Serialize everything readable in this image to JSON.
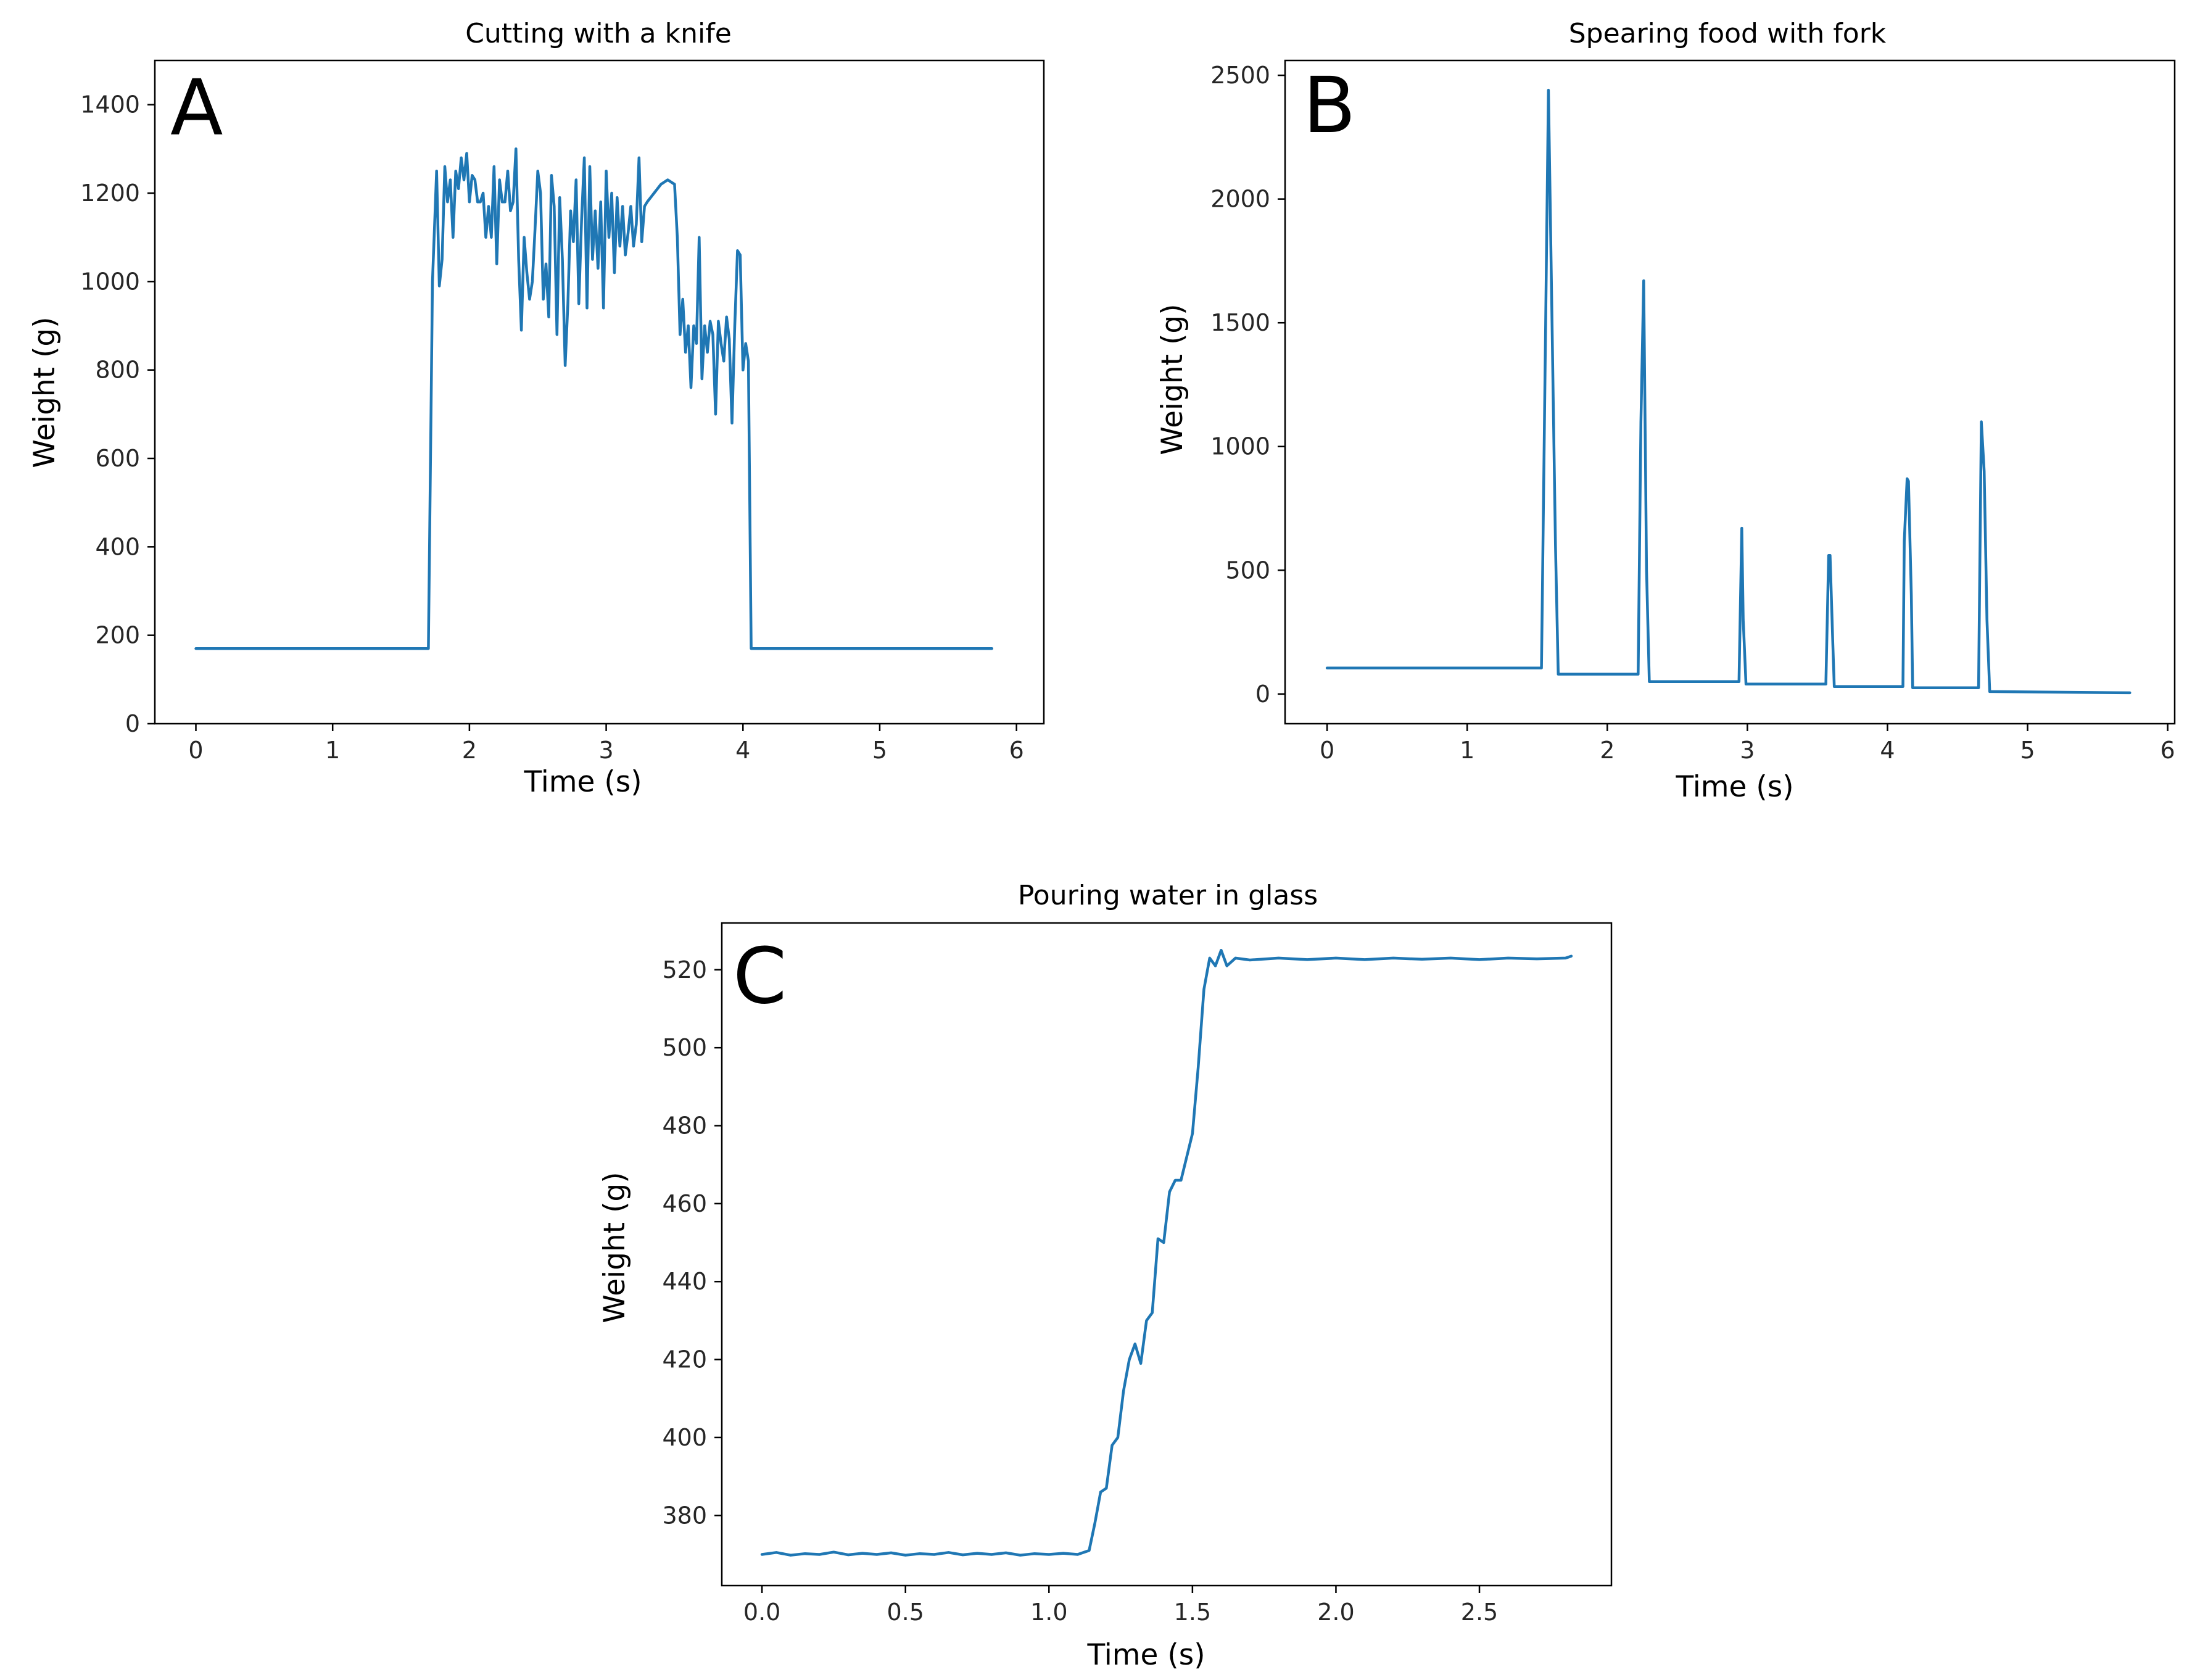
{
  "colors": {
    "series": "#1f77b4",
    "axes": "#000000",
    "background": "#ffffff"
  },
  "chart_data": [
    {
      "type": "line",
      "panel_label": "A",
      "title": "Cutting with a knife",
      "xlabel": "Time (s)",
      "ylabel": "Weight (g)",
      "xlim": [
        -0.3,
        6.2
      ],
      "ylim": [
        0,
        1500
      ],
      "xticks": [
        0,
        1,
        2,
        3,
        4,
        5,
        6
      ],
      "xtick_labels": [
        "0",
        "1",
        "2",
        "3",
        "4",
        "5",
        "6"
      ],
      "yticks": [
        0,
        200,
        400,
        600,
        800,
        1000,
        1200,
        1400
      ],
      "ytick_labels": [
        "0",
        "200",
        "400",
        "600",
        "800",
        "1000",
        "1200",
        "1400"
      ],
      "series": [
        {
          "name": "weight",
          "x": [
            0,
            1.7,
            1.73,
            1.76,
            1.78,
            1.8,
            1.82,
            1.84,
            1.86,
            1.88,
            1.9,
            1.92,
            1.94,
            1.96,
            1.98,
            2.0,
            2.02,
            2.04,
            2.06,
            2.08,
            2.1,
            2.12,
            2.14,
            2.16,
            2.18,
            2.2,
            2.22,
            2.24,
            2.26,
            2.28,
            2.3,
            2.32,
            2.34,
            2.36,
            2.38,
            2.4,
            2.42,
            2.44,
            2.46,
            2.48,
            2.5,
            2.52,
            2.54,
            2.56,
            2.58,
            2.6,
            2.62,
            2.64,
            2.66,
            2.68,
            2.7,
            2.72,
            2.74,
            2.76,
            2.78,
            2.8,
            2.82,
            2.84,
            2.86,
            2.88,
            2.9,
            2.92,
            2.94,
            2.96,
            2.98,
            3.0,
            3.02,
            3.04,
            3.06,
            3.08,
            3.1,
            3.12,
            3.14,
            3.16,
            3.18,
            3.2,
            3.22,
            3.24,
            3.26,
            3.28,
            3.3,
            3.35,
            3.4,
            3.45,
            3.5,
            3.52,
            3.54,
            3.56,
            3.58,
            3.6,
            3.62,
            3.64,
            3.66,
            3.68,
            3.7,
            3.72,
            3.74,
            3.76,
            3.78,
            3.8,
            3.82,
            3.84,
            3.86,
            3.88,
            3.9,
            3.92,
            3.94,
            3.96,
            3.98,
            4.0,
            4.02,
            4.04,
            4.06,
            4.08,
            5.82
          ],
          "y": [
            170,
            170,
            1000,
            1250,
            990,
            1050,
            1260,
            1180,
            1230,
            1100,
            1250,
            1210,
            1280,
            1230,
            1290,
            1180,
            1240,
            1230,
            1180,
            1180,
            1200,
            1100,
            1170,
            1100,
            1260,
            1040,
            1230,
            1180,
            1180,
            1250,
            1160,
            1180,
            1300,
            1050,
            890,
            1100,
            1020,
            960,
            1000,
            1120,
            1250,
            1200,
            960,
            1040,
            920,
            1240,
            1170,
            880,
            1190,
            1050,
            810,
            950,
            1160,
            1090,
            1230,
            950,
            1140,
            1280,
            940,
            1260,
            1050,
            1160,
            1030,
            1180,
            940,
            1250,
            1100,
            1200,
            1020,
            1190,
            1080,
            1170,
            1060,
            1110,
            1170,
            1080,
            1130,
            1280,
            1090,
            1170,
            1180,
            1200,
            1220,
            1230,
            1220,
            1100,
            880,
            960,
            840,
            900,
            760,
            900,
            860,
            1100,
            780,
            900,
            840,
            910,
            880,
            700,
            910,
            860,
            820,
            920,
            870,
            680,
            900,
            1070,
            1060,
            800,
            860,
            820,
            170,
            170,
            170
          ]
        }
      ]
    },
    {
      "type": "line",
      "panel_label": "B",
      "title": "Spearing food with fork",
      "xlabel": "Time (s)",
      "ylabel": "Weight (g)",
      "xlim": [
        -0.3,
        6.05
      ],
      "ylim": [
        -120,
        2560
      ],
      "xticks": [
        0,
        1,
        2,
        3,
        4,
        5,
        6
      ],
      "xtick_labels": [
        "0",
        "1",
        "2",
        "3",
        "4",
        "5",
        "6"
      ],
      "yticks": [
        0,
        500,
        1000,
        1500,
        2000,
        2500
      ],
      "ytick_labels": [
        "0",
        "500",
        "1000",
        "1500",
        "2000",
        "2500"
      ],
      "series": [
        {
          "name": "weight",
          "x": [
            0,
            1.53,
            1.56,
            1.58,
            1.6,
            1.63,
            1.65,
            2.22,
            2.24,
            2.26,
            2.28,
            2.3,
            2.94,
            2.96,
            2.97,
            2.99,
            3.0,
            3.56,
            3.58,
            3.59,
            3.61,
            3.62,
            4.11,
            4.12,
            4.14,
            4.15,
            4.17,
            4.18,
            4.65,
            4.67,
            4.69,
            4.71,
            4.73,
            5.73
          ],
          "y": [
            105,
            105,
            1500,
            2440,
            1700,
            600,
            80,
            80,
            1100,
            1670,
            500,
            50,
            50,
            670,
            300,
            40,
            40,
            40,
            560,
            560,
            200,
            30,
            30,
            620,
            870,
            860,
            400,
            25,
            25,
            1100,
            900,
            300,
            10,
            5
          ]
        }
      ]
    },
    {
      "type": "line",
      "panel_label": "C",
      "title": "Pouring water in glass",
      "xlabel": "Time (s)",
      "ylabel": "Weight (g)",
      "xlim": [
        -0.14,
        2.96
      ],
      "ylim": [
        362,
        532
      ],
      "xticks": [
        0.0,
        0.5,
        1.0,
        1.5,
        2.0,
        2.5
      ],
      "xtick_labels": [
        "0.0",
        "0.5",
        "1.0",
        "1.5",
        "2.0",
        "2.5"
      ],
      "yticks": [
        380,
        400,
        420,
        440,
        460,
        480,
        500,
        520
      ],
      "ytick_labels": [
        "380",
        "400",
        "420",
        "440",
        "460",
        "480",
        "500",
        "520"
      ],
      "series": [
        {
          "name": "weight",
          "x": [
            0.0,
            0.05,
            0.1,
            0.15,
            0.2,
            0.25,
            0.3,
            0.35,
            0.4,
            0.45,
            0.5,
            0.55,
            0.6,
            0.65,
            0.7,
            0.75,
            0.8,
            0.85,
            0.9,
            0.95,
            1.0,
            1.05,
            1.1,
            1.14,
            1.16,
            1.18,
            1.2,
            1.22,
            1.24,
            1.26,
            1.28,
            1.3,
            1.32,
            1.34,
            1.36,
            1.38,
            1.4,
            1.42,
            1.44,
            1.46,
            1.48,
            1.5,
            1.52,
            1.54,
            1.56,
            1.58,
            1.6,
            1.62,
            1.65,
            1.7,
            1.8,
            1.9,
            2.0,
            2.1,
            2.2,
            2.3,
            2.4,
            2.5,
            2.6,
            2.7,
            2.8,
            2.82
          ],
          "y": [
            370,
            370.5,
            369.8,
            370.2,
            370,
            370.6,
            369.9,
            370.3,
            370,
            370.4,
            369.8,
            370.2,
            370,
            370.5,
            369.9,
            370.3,
            370,
            370.4,
            369.8,
            370.2,
            370,
            370.3,
            370,
            371,
            378,
            386,
            387,
            398,
            400,
            412,
            420,
            424,
            419,
            430,
            432,
            451,
            450,
            463,
            466,
            466,
            472,
            478,
            495,
            515,
            523,
            521,
            525,
            521,
            523,
            522.5,
            523,
            522.6,
            523,
            522.6,
            523,
            522.7,
            523,
            522.6,
            523,
            522.8,
            523,
            523.5
          ]
        }
      ]
    }
  ]
}
